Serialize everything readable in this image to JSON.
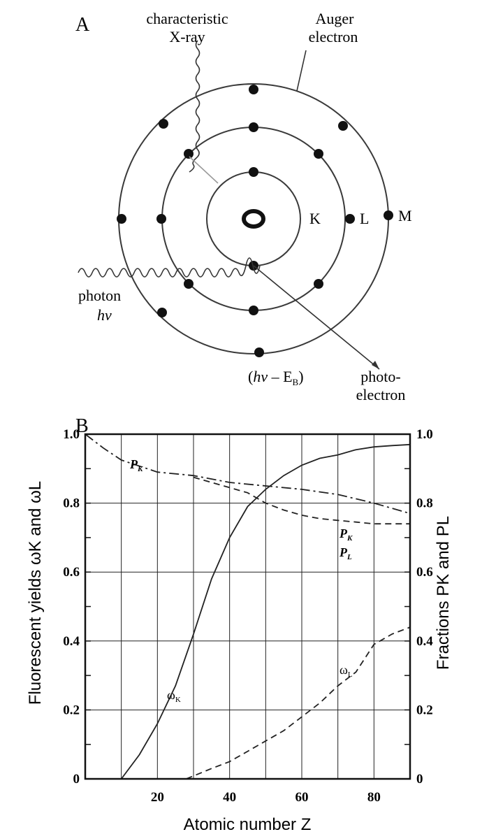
{
  "panel_a": {
    "label": "A",
    "xray_label_1": "characteristic",
    "xray_label_2": "X-ray",
    "auger_label_1": "Auger",
    "auger_label_2": "electron",
    "shell_k": "K",
    "shell_l": "L",
    "shell_m": "M",
    "photon_label": "photon",
    "photon_energy": "hv",
    "energy_expr_1": "(",
    "energy_expr_hv": "hv",
    "energy_expr_2": " – E",
    "energy_expr_sub": "B",
    "energy_expr_3": ")",
    "photoelectron_1": "photo-",
    "photoelectron_2": "electron"
  },
  "panel_b": {
    "label": "B",
    "left_axis_title": "Fluorescent yields  ωK and  ωL",
    "right_axis_title": "Fractions  PK and  PL",
    "x_axis_title": "Atomic number  Z",
    "curve_labels": {
      "omega_k": "ω",
      "omega_k_sub": "K",
      "omega_l": "ω",
      "omega_l_sub": "L",
      "p_k_1": "P",
      "p_k_1_sub": "K",
      "p_k_2": "P",
      "p_k_2_sub": "K",
      "p_l": "P",
      "p_l_sub": "L"
    }
  },
  "chart_data": {
    "type": "line",
    "xlabel": "Atomic number  Z",
    "ylabel": "Fluorescent yields  ωK and  ωL",
    "y2label": "Fractions  PK and  PL",
    "xlim": [
      0,
      90
    ],
    "ylim": [
      0,
      1.0
    ],
    "y2lim": [
      0,
      1.0
    ],
    "x_ticks": [
      20,
      40,
      60,
      80
    ],
    "y_ticks": [
      0,
      0.2,
      0.4,
      0.6,
      0.8,
      1.0
    ],
    "y2_ticks": [
      0,
      0.2,
      0.4,
      0.6,
      0.8,
      1.0
    ],
    "grid": true,
    "series": [
      {
        "name": "ωK",
        "style": "solid",
        "x": [
          10,
          15,
          20,
          25,
          30,
          35,
          40,
          45,
          50,
          55,
          60,
          65,
          70,
          75,
          80,
          85,
          90
        ],
        "y": [
          0.0,
          0.07,
          0.16,
          0.27,
          0.42,
          0.58,
          0.7,
          0.79,
          0.84,
          0.88,
          0.91,
          0.93,
          0.94,
          0.955,
          0.963,
          0.967,
          0.97
        ]
      },
      {
        "name": "ωL",
        "style": "dashed",
        "x": [
          28,
          35,
          40,
          45,
          50,
          55,
          60,
          65,
          70,
          75,
          80,
          85,
          90
        ],
        "y": [
          0.0,
          0.03,
          0.05,
          0.08,
          0.11,
          0.14,
          0.18,
          0.22,
          0.27,
          0.31,
          0.39,
          0.42,
          0.44
        ]
      },
      {
        "name": "PK",
        "style": "dash-dot",
        "x": [
          0,
          5,
          10,
          20,
          30,
          40,
          50,
          60,
          70,
          80,
          90
        ],
        "y": [
          1.0,
          0.96,
          0.925,
          0.89,
          0.88,
          0.86,
          0.85,
          0.84,
          0.825,
          0.8,
          0.77
        ]
      },
      {
        "name": "PL",
        "style": "dashed",
        "x": [
          30,
          35,
          40,
          45,
          50,
          55,
          60,
          65,
          70,
          75,
          80,
          85,
          90
        ],
        "y": [
          0.875,
          0.86,
          0.845,
          0.83,
          0.8,
          0.78,
          0.765,
          0.755,
          0.75,
          0.745,
          0.74,
          0.74,
          0.74
        ]
      }
    ]
  }
}
